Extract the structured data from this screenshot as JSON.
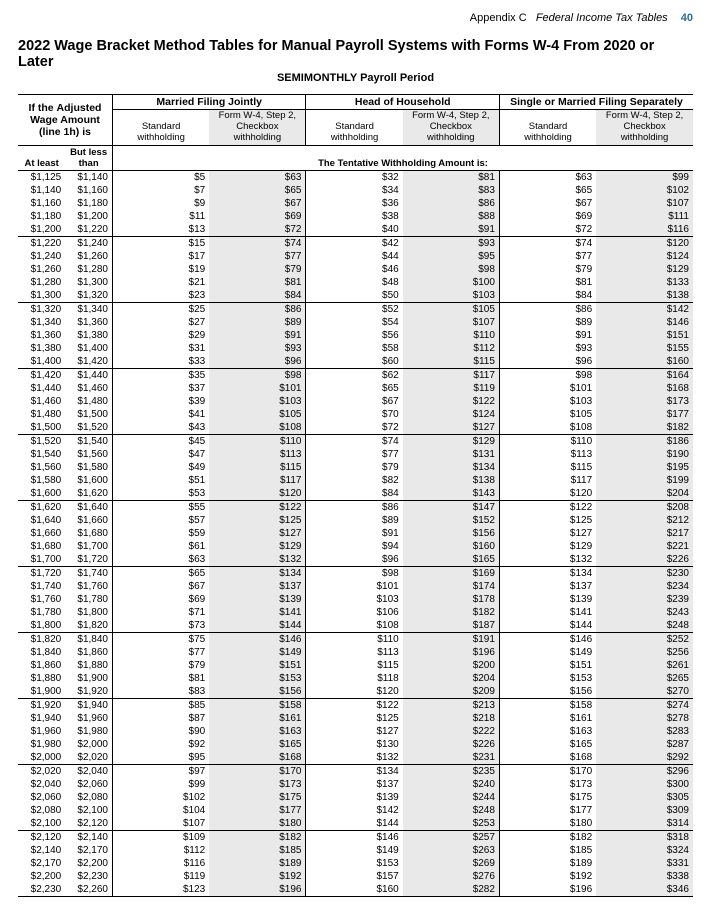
{
  "header": {
    "appendix": "Appendix C",
    "doc_title": "Federal Income Tax Tables",
    "page_fragment": "40"
  },
  "main_title": "2022 Wage Bracket Method Tables for Manual Payroll Systems with Forms W-4 From 2020 or Later",
  "subtitle": "SEMIMONTHLY Payroll Period",
  "wage_header_html": "If the <b>Adjusted Wage Amount</b> (line 1h) is",
  "filing_statuses": [
    "Married Filing Jointly",
    "Head of Household",
    "Single or Married Filing Separately"
  ],
  "sub_cols": {
    "std": "Standard withholding",
    "chk_top": "Form W-4, Step 2,",
    "chk_mid": "Checkbox",
    "chk_bot": "withholding"
  },
  "range_labels": {
    "atleast": "At least",
    "butless": "But less than"
  },
  "tentative_label": "The Tentative Withholding Amount is:",
  "colors": {
    "shade_bg": "#e9e9e9",
    "text": "#000000",
    "page_link": "#2a6e9e"
  },
  "groups": [
    [
      {
        "lo": "$1,125",
        "hi": "$1,140",
        "v": [
          "$5",
          "$63",
          "$32",
          "$81",
          "$63",
          "$99"
        ]
      },
      {
        "lo": "$1,140",
        "hi": "$1,160",
        "v": [
          "$7",
          "$65",
          "$34",
          "$83",
          "$65",
          "$102"
        ]
      },
      {
        "lo": "$1,160",
        "hi": "$1,180",
        "v": [
          "$9",
          "$67",
          "$36",
          "$86",
          "$67",
          "$107"
        ]
      },
      {
        "lo": "$1,180",
        "hi": "$1,200",
        "v": [
          "$11",
          "$69",
          "$38",
          "$88",
          "$69",
          "$111"
        ]
      },
      {
        "lo": "$1,200",
        "hi": "$1,220",
        "v": [
          "$13",
          "$72",
          "$40",
          "$91",
          "$72",
          "$116"
        ]
      }
    ],
    [
      {
        "lo": "$1,220",
        "hi": "$1,240",
        "v": [
          "$15",
          "$74",
          "$42",
          "$93",
          "$74",
          "$120"
        ]
      },
      {
        "lo": "$1,240",
        "hi": "$1,260",
        "v": [
          "$17",
          "$77",
          "$44",
          "$95",
          "$77",
          "$124"
        ]
      },
      {
        "lo": "$1,260",
        "hi": "$1,280",
        "v": [
          "$19",
          "$79",
          "$46",
          "$98",
          "$79",
          "$129"
        ]
      },
      {
        "lo": "$1,280",
        "hi": "$1,300",
        "v": [
          "$21",
          "$81",
          "$48",
          "$100",
          "$81",
          "$133"
        ]
      },
      {
        "lo": "$1,300",
        "hi": "$1,320",
        "v": [
          "$23",
          "$84",
          "$50",
          "$103",
          "$84",
          "$138"
        ]
      }
    ],
    [
      {
        "lo": "$1,320",
        "hi": "$1,340",
        "v": [
          "$25",
          "$86",
          "$52",
          "$105",
          "$86",
          "$142"
        ]
      },
      {
        "lo": "$1,340",
        "hi": "$1,360",
        "v": [
          "$27",
          "$89",
          "$54",
          "$107",
          "$89",
          "$146"
        ]
      },
      {
        "lo": "$1,360",
        "hi": "$1,380",
        "v": [
          "$29",
          "$91",
          "$56",
          "$110",
          "$91",
          "$151"
        ]
      },
      {
        "lo": "$1,380",
        "hi": "$1,400",
        "v": [
          "$31",
          "$93",
          "$58",
          "$112",
          "$93",
          "$155"
        ]
      },
      {
        "lo": "$1,400",
        "hi": "$1,420",
        "v": [
          "$33",
          "$96",
          "$60",
          "$115",
          "$96",
          "$160"
        ]
      }
    ],
    [
      {
        "lo": "$1,420",
        "hi": "$1,440",
        "v": [
          "$35",
          "$98",
          "$62",
          "$117",
          "$98",
          "$164"
        ]
      },
      {
        "lo": "$1,440",
        "hi": "$1,460",
        "v": [
          "$37",
          "$101",
          "$65",
          "$119",
          "$101",
          "$168"
        ]
      },
      {
        "lo": "$1,460",
        "hi": "$1,480",
        "v": [
          "$39",
          "$103",
          "$67",
          "$122",
          "$103",
          "$173"
        ]
      },
      {
        "lo": "$1,480",
        "hi": "$1,500",
        "v": [
          "$41",
          "$105",
          "$70",
          "$124",
          "$105",
          "$177"
        ]
      },
      {
        "lo": "$1,500",
        "hi": "$1,520",
        "v": [
          "$43",
          "$108",
          "$72",
          "$127",
          "$108",
          "$182"
        ]
      }
    ],
    [
      {
        "lo": "$1,520",
        "hi": "$1,540",
        "v": [
          "$45",
          "$110",
          "$74",
          "$129",
          "$110",
          "$186"
        ]
      },
      {
        "lo": "$1,540",
        "hi": "$1,560",
        "v": [
          "$47",
          "$113",
          "$77",
          "$131",
          "$113",
          "$190"
        ]
      },
      {
        "lo": "$1,560",
        "hi": "$1,580",
        "v": [
          "$49",
          "$115",
          "$79",
          "$134",
          "$115",
          "$195"
        ]
      },
      {
        "lo": "$1,580",
        "hi": "$1,600",
        "v": [
          "$51",
          "$117",
          "$82",
          "$138",
          "$117",
          "$199"
        ]
      },
      {
        "lo": "$1,600",
        "hi": "$1,620",
        "v": [
          "$53",
          "$120",
          "$84",
          "$143",
          "$120",
          "$204"
        ]
      }
    ],
    [
      {
        "lo": "$1,620",
        "hi": "$1,640",
        "v": [
          "$55",
          "$122",
          "$86",
          "$147",
          "$122",
          "$208"
        ]
      },
      {
        "lo": "$1,640",
        "hi": "$1,660",
        "v": [
          "$57",
          "$125",
          "$89",
          "$152",
          "$125",
          "$212"
        ]
      },
      {
        "lo": "$1,660",
        "hi": "$1,680",
        "v": [
          "$59",
          "$127",
          "$91",
          "$156",
          "$127",
          "$217"
        ]
      },
      {
        "lo": "$1,680",
        "hi": "$1,700",
        "v": [
          "$61",
          "$129",
          "$94",
          "$160",
          "$129",
          "$221"
        ]
      },
      {
        "lo": "$1,700",
        "hi": "$1,720",
        "v": [
          "$63",
          "$132",
          "$96",
          "$165",
          "$132",
          "$226"
        ]
      }
    ],
    [
      {
        "lo": "$1,720",
        "hi": "$1,740",
        "v": [
          "$65",
          "$134",
          "$98",
          "$169",
          "$134",
          "$230"
        ]
      },
      {
        "lo": "$1,740",
        "hi": "$1,760",
        "v": [
          "$67",
          "$137",
          "$101",
          "$174",
          "$137",
          "$234"
        ]
      },
      {
        "lo": "$1,760",
        "hi": "$1,780",
        "v": [
          "$69",
          "$139",
          "$103",
          "$178",
          "$139",
          "$239"
        ]
      },
      {
        "lo": "$1,780",
        "hi": "$1,800",
        "v": [
          "$71",
          "$141",
          "$106",
          "$182",
          "$141",
          "$243"
        ]
      },
      {
        "lo": "$1,800",
        "hi": "$1,820",
        "v": [
          "$73",
          "$144",
          "$108",
          "$187",
          "$144",
          "$248"
        ]
      }
    ],
    [
      {
        "lo": "$1,820",
        "hi": "$1,840",
        "v": [
          "$75",
          "$146",
          "$110",
          "$191",
          "$146",
          "$252"
        ]
      },
      {
        "lo": "$1,840",
        "hi": "$1,860",
        "v": [
          "$77",
          "$149",
          "$113",
          "$196",
          "$149",
          "$256"
        ]
      },
      {
        "lo": "$1,860",
        "hi": "$1,880",
        "v": [
          "$79",
          "$151",
          "$115",
          "$200",
          "$151",
          "$261"
        ]
      },
      {
        "lo": "$1,880",
        "hi": "$1,900",
        "v": [
          "$81",
          "$153",
          "$118",
          "$204",
          "$153",
          "$265"
        ]
      },
      {
        "lo": "$1,900",
        "hi": "$1,920",
        "v": [
          "$83",
          "$156",
          "$120",
          "$209",
          "$156",
          "$270"
        ]
      }
    ],
    [
      {
        "lo": "$1,920",
        "hi": "$1,940",
        "v": [
          "$85",
          "$158",
          "$122",
          "$213",
          "$158",
          "$274"
        ]
      },
      {
        "lo": "$1,940",
        "hi": "$1,960",
        "v": [
          "$87",
          "$161",
          "$125",
          "$218",
          "$161",
          "$278"
        ]
      },
      {
        "lo": "$1,960",
        "hi": "$1,980",
        "v": [
          "$90",
          "$163",
          "$127",
          "$222",
          "$163",
          "$283"
        ]
      },
      {
        "lo": "$1,980",
        "hi": "$2,000",
        "v": [
          "$92",
          "$165",
          "$130",
          "$226",
          "$165",
          "$287"
        ]
      },
      {
        "lo": "$2,000",
        "hi": "$2,020",
        "v": [
          "$95",
          "$168",
          "$132",
          "$231",
          "$168",
          "$292"
        ]
      }
    ],
    [
      {
        "lo": "$2,020",
        "hi": "$2,040",
        "v": [
          "$97",
          "$170",
          "$134",
          "$235",
          "$170",
          "$296"
        ]
      },
      {
        "lo": "$2,040",
        "hi": "$2,060",
        "v": [
          "$99",
          "$173",
          "$137",
          "$240",
          "$173",
          "$300"
        ]
      },
      {
        "lo": "$2,060",
        "hi": "$2,080",
        "v": [
          "$102",
          "$175",
          "$139",
          "$244",
          "$175",
          "$305"
        ]
      },
      {
        "lo": "$2,080",
        "hi": "$2,100",
        "v": [
          "$104",
          "$177",
          "$142",
          "$248",
          "$177",
          "$309"
        ]
      },
      {
        "lo": "$2,100",
        "hi": "$2,120",
        "v": [
          "$107",
          "$180",
          "$144",
          "$253",
          "$180",
          "$314"
        ]
      }
    ],
    [
      {
        "lo": "$2,120",
        "hi": "$2,140",
        "v": [
          "$109",
          "$182",
          "$146",
          "$257",
          "$182",
          "$318"
        ]
      },
      {
        "lo": "$2,140",
        "hi": "$2,170",
        "v": [
          "$112",
          "$185",
          "$149",
          "$263",
          "$185",
          "$324"
        ]
      },
      {
        "lo": "$2,170",
        "hi": "$2,200",
        "v": [
          "$116",
          "$189",
          "$153",
          "$269",
          "$189",
          "$331"
        ]
      },
      {
        "lo": "$2,200",
        "hi": "$2,230",
        "v": [
          "$119",
          "$192",
          "$157",
          "$276",
          "$192",
          "$338"
        ]
      },
      {
        "lo": "$2,230",
        "hi": "$2,260",
        "v": [
          "$123",
          "$196",
          "$160",
          "$282",
          "$196",
          "$346"
        ]
      }
    ]
  ]
}
